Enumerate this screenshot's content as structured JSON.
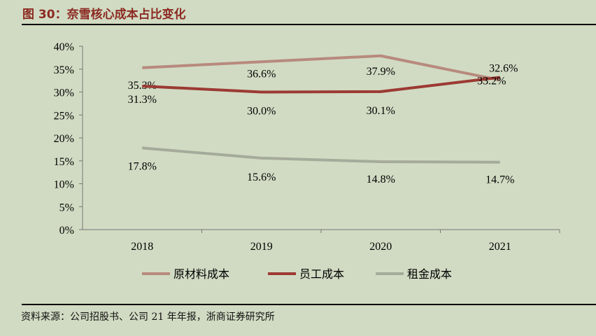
{
  "title": "图 30：奈雪核心成本占比变化",
  "source": "资料来源：公司招股书、公司 21 年年报，浙商证券研究所",
  "chart_data": {
    "type": "line",
    "categories": [
      "2018",
      "2019",
      "2020",
      "2021"
    ],
    "ylim": [
      0,
      40
    ],
    "yticks": [
      "0%",
      "5%",
      "10%",
      "15%",
      "20%",
      "25%",
      "30%",
      "35%",
      "40%"
    ],
    "legend_placement": "bottom",
    "series": [
      {
        "name": "原材料成本",
        "values": [
          35.3,
          36.6,
          37.9,
          32.6
        ],
        "labels": [
          "35.3%",
          "36.6%",
          "37.9%",
          "32.6%"
        ],
        "color": "#b88a7e"
      },
      {
        "name": "员工成本",
        "values": [
          31.3,
          30.0,
          30.1,
          33.2
        ],
        "labels": [
          "31.3%",
          "30.0%",
          "30.1%",
          "33.2%"
        ],
        "color": "#9c3a33"
      },
      {
        "name": "租金成本",
        "values": [
          17.8,
          15.6,
          14.8,
          14.7
        ],
        "labels": [
          "17.8%",
          "15.6%",
          "14.8%",
          "14.7%"
        ],
        "color": "#a5ab9a"
      }
    ]
  }
}
